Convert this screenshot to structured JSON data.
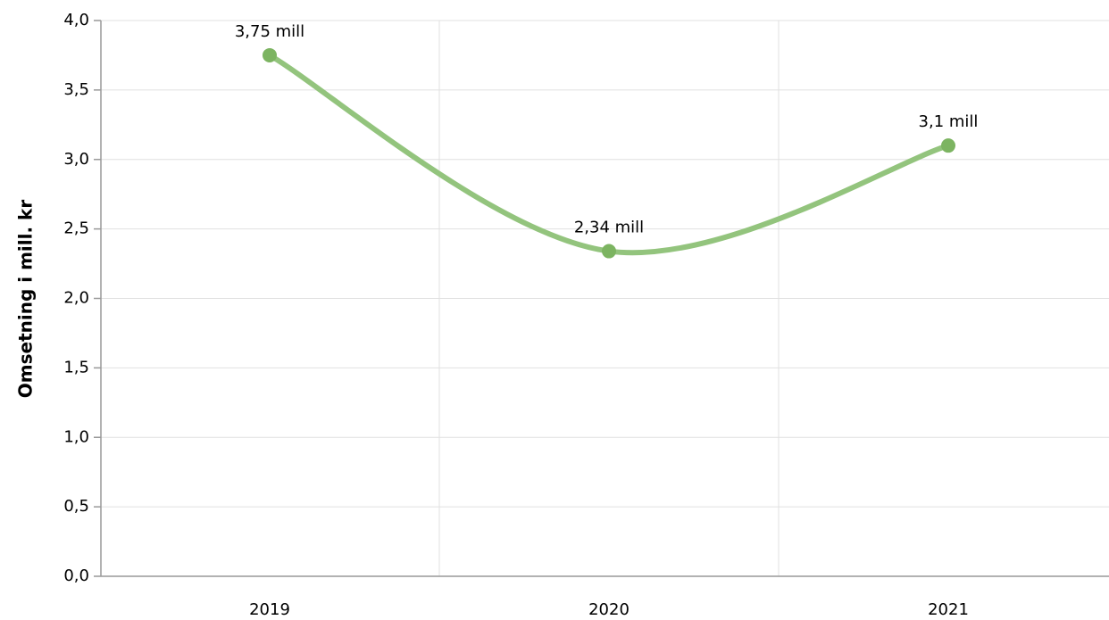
{
  "chart_data": {
    "type": "line",
    "y_label": "Omsetning i mill. kr",
    "categories": [
      "2019",
      "2020",
      "2021"
    ],
    "series": [
      {
        "name": "Omsetning",
        "color": "#93c47d",
        "values": [
          3.75,
          2.34,
          3.1
        ],
        "value_labels": [
          "3,75 mill",
          "2,34 mill",
          "3,1 mill"
        ]
      }
    ],
    "marker_color": "#7cb461",
    "ylim": [
      0,
      4
    ],
    "yticks": [
      {
        "value": 0,
        "label": "0,0"
      },
      {
        "value": 0.5,
        "label": "0,5"
      },
      {
        "value": 1,
        "label": "1,0"
      },
      {
        "value": 1.5,
        "label": "1,5"
      },
      {
        "value": 2,
        "label": "2,0"
      },
      {
        "value": 2.5,
        "label": "2,5"
      },
      {
        "value": 3,
        "label": "3,0"
      },
      {
        "value": 3.5,
        "label": "3,5"
      },
      {
        "value": 4,
        "label": "4,0"
      }
    ],
    "grid": true,
    "smooth": true
  }
}
